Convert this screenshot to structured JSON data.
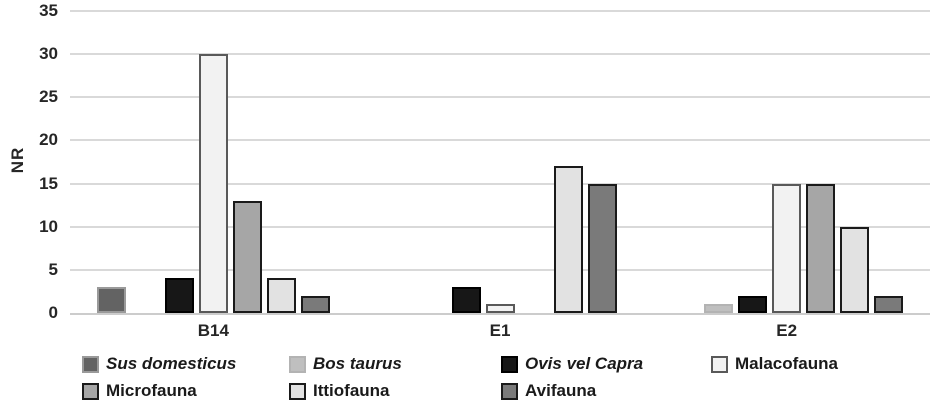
{
  "chart_data": {
    "type": "bar",
    "title": "",
    "xlabel": "",
    "ylabel": "NR",
    "ylim": [
      0,
      35
    ],
    "ytick_step": 5,
    "yticks": [
      0,
      5,
      10,
      15,
      20,
      25,
      30,
      35
    ],
    "grid": true,
    "gridline_color": "#d9d9d9",
    "legend_position": "bottom",
    "categories": [
      "B14",
      "E1",
      "E2"
    ],
    "series": [
      {
        "name": "Sus domesticus",
        "italic": true,
        "values": [
          3,
          0,
          0
        ],
        "fill": "#636363",
        "border": "#9a9a9a"
      },
      {
        "name": "Bos taurus",
        "italic": true,
        "values": [
          0,
          0,
          1
        ],
        "fill": "#bfbfbf",
        "border": "#b3b3b3"
      },
      {
        "name": "Ovis vel Capra",
        "italic": true,
        "values": [
          4,
          3,
          2
        ],
        "fill": "#171717",
        "border": "#000000"
      },
      {
        "name": "Malacofauna",
        "italic": false,
        "values": [
          30,
          1,
          15
        ],
        "fill": "#f2f2f2",
        "border": "#595959"
      },
      {
        "name": "Microfauna",
        "italic": false,
        "values": [
          13,
          0,
          15
        ],
        "fill": "#a6a6a6",
        "border": "#1a1a1a"
      },
      {
        "name": "Ittiofauna",
        "italic": false,
        "values": [
          4,
          17,
          10
        ],
        "fill": "#e2e2e2",
        "border": "#1a1a1a"
      },
      {
        "name": "Avifauna",
        "italic": false,
        "values": [
          2,
          15,
          2
        ],
        "fill": "#7a7a7a",
        "border": "#1a1a1a"
      }
    ],
    "legend_rows": [
      [
        "Sus domesticus",
        "Bos taurus",
        "Ovis vel Capra",
        "Malacofauna"
      ],
      [
        "Microfauna",
        "Ittiofauna",
        "Avifauna"
      ]
    ]
  }
}
